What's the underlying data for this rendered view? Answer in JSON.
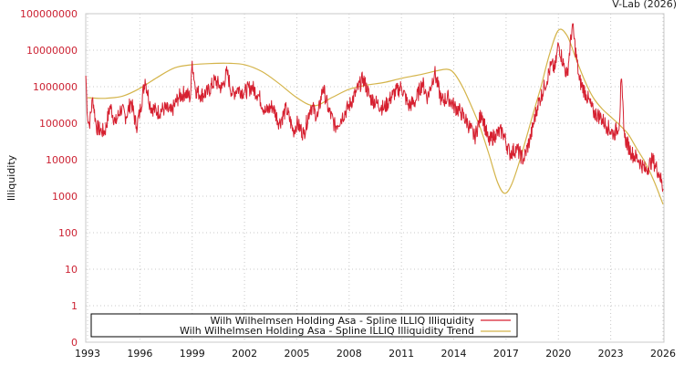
{
  "credit": "V-Lab (2026)",
  "colors": {
    "illiq": "#d62030",
    "trend": "#d4b44a",
    "ytick": "#cc2233",
    "grid": "#c8c8c8",
    "axis": "#c8c8c8"
  },
  "chart_data": {
    "type": "line",
    "title": "",
    "xlabel": "",
    "ylabel": "Illiquidity",
    "yscale": "log",
    "x_ticks": [
      "1993",
      "1996",
      "1999",
      "2002",
      "2005",
      "2008",
      "2011",
      "2014",
      "2017",
      "2020",
      "2023",
      "2026"
    ],
    "y_ticks": [
      "100000000",
      "10000000",
      "1000000",
      "100000",
      "10000",
      "1000",
      "100",
      "10",
      "1",
      "0"
    ],
    "xlim": [
      1993,
      2026
    ],
    "ylim": [
      0,
      100000000
    ],
    "grid": true,
    "legend_position": "bottom-inside",
    "series": [
      {
        "name": "Wilh Wilhelmsen Holding Asa - Spline ILLIQ Illiquidity",
        "color": "#d62030",
        "x": [
          1992.9,
          1993.0,
          1993.1,
          1993.3,
          1993.5,
          1993.8,
          1994.0,
          1994.3,
          1994.6,
          1994.9,
          1995.2,
          1995.5,
          1995.8,
          1996.0,
          1996.3,
          1996.6,
          1997.0,
          1997.4,
          1997.8,
          1998.2,
          1998.6,
          1998.9,
          1999.0,
          1999.2,
          1999.5,
          1999.9,
          2000.3,
          2000.7,
          2001.0,
          2001.3,
          2001.6,
          2002.0,
          2002.4,
          2002.8,
          2003.2,
          2003.6,
          2004.0,
          2004.4,
          2004.8,
          2005.0,
          2005.4,
          2005.8,
          2006.2,
          2006.5,
          2006.8,
          2007.2,
          2007.6,
          2008.0,
          2008.4,
          2008.8,
          2009.2,
          2009.6,
          2010.0,
          2010.5,
          2011.0,
          2011.4,
          2011.8,
          2012.2,
          2012.5,
          2012.9,
          2013.3,
          2013.7,
          2014.0,
          2014.4,
          2014.8,
          2015.2,
          2015.6,
          2016.0,
          2016.4,
          2016.8,
          2017.2,
          2017.6,
          2018.0,
          2018.4,
          2018.8,
          2019.2,
          2019.6,
          2019.8,
          2020.0,
          2020.3,
          2020.5,
          2020.8,
          2021.2,
          2021.6,
          2022.0,
          2022.4,
          2022.8,
          2023.2,
          2023.5,
          2023.6,
          2023.8,
          2024.2,
          2024.6,
          2025.0,
          2025.4,
          2025.8,
          2026.0
        ],
        "values": [
          2000000,
          150000,
          90000,
          500000,
          80000,
          60000,
          60000,
          300000,
          100000,
          250000,
          150000,
          400000,
          80000,
          200000,
          1600000,
          300000,
          200000,
          250000,
          200000,
          500000,
          700000,
          500000,
          5000000,
          800000,
          600000,
          700000,
          1500000,
          900000,
          2500000,
          600000,
          900000,
          700000,
          1000000,
          600000,
          200000,
          300000,
          100000,
          250000,
          60000,
          100000,
          50000,
          300000,
          150000,
          1000000,
          250000,
          80000,
          150000,
          300000,
          700000,
          1700000,
          500000,
          350000,
          250000,
          600000,
          1000000,
          300000,
          400000,
          1300000,
          500000,
          2500000,
          400000,
          500000,
          300000,
          200000,
          100000,
          40000,
          200000,
          30000,
          50000,
          60000,
          15000,
          20000,
          10000,
          40000,
          300000,
          1000000,
          4000000,
          3000000,
          15000000,
          4000000,
          2000000,
          50000000,
          1500000,
          600000,
          200000,
          150000,
          80000,
          50000,
          100000,
          1600000,
          40000,
          15000,
          10000,
          5000,
          10000,
          4000,
          1600
        ]
      },
      {
        "name": "Wilh Wilhelmsen Holding Asa - Spline ILLIQ Illiquidity Trend",
        "color": "#d4b44a",
        "x": [
          1993.0,
          1994.0,
          1995.0,
          1996.0,
          1997.0,
          1998.0,
          1999.0,
          2000.0,
          2001.0,
          2002.0,
          2003.0,
          2004.0,
          2005.0,
          2006.0,
          2007.0,
          2008.0,
          2009.0,
          2010.0,
          2011.0,
          2012.0,
          2013.0,
          2013.6,
          2014.0,
          2014.5,
          2015.0,
          2015.5,
          2016.0,
          2016.5,
          2016.9,
          2017.3,
          2017.8,
          2018.5,
          2019.0,
          2019.5,
          2020.0,
          2020.5,
          2021.0,
          2021.5,
          2022.0,
          2022.5,
          2023.0,
          2023.5,
          2024.0,
          2024.5,
          2025.0,
          2025.5,
          2026.0
        ],
        "values": [
          500000,
          480000,
          550000,
          900000,
          1800000,
          3300000,
          4000000,
          4300000,
          4400000,
          4000000,
          2600000,
          1200000,
          500000,
          300000,
          500000,
          850000,
          1100000,
          1300000,
          1700000,
          2100000,
          2700000,
          3000000,
          2400000,
          1000000,
          300000,
          80000,
          15000,
          2500,
          1200,
          2000,
          10000,
          150000,
          1000000,
          8000000,
          35000000,
          25000000,
          6000000,
          1500000,
          500000,
          250000,
          150000,
          90000,
          50000,
          20000,
          8000,
          2500,
          600
        ]
      }
    ]
  }
}
